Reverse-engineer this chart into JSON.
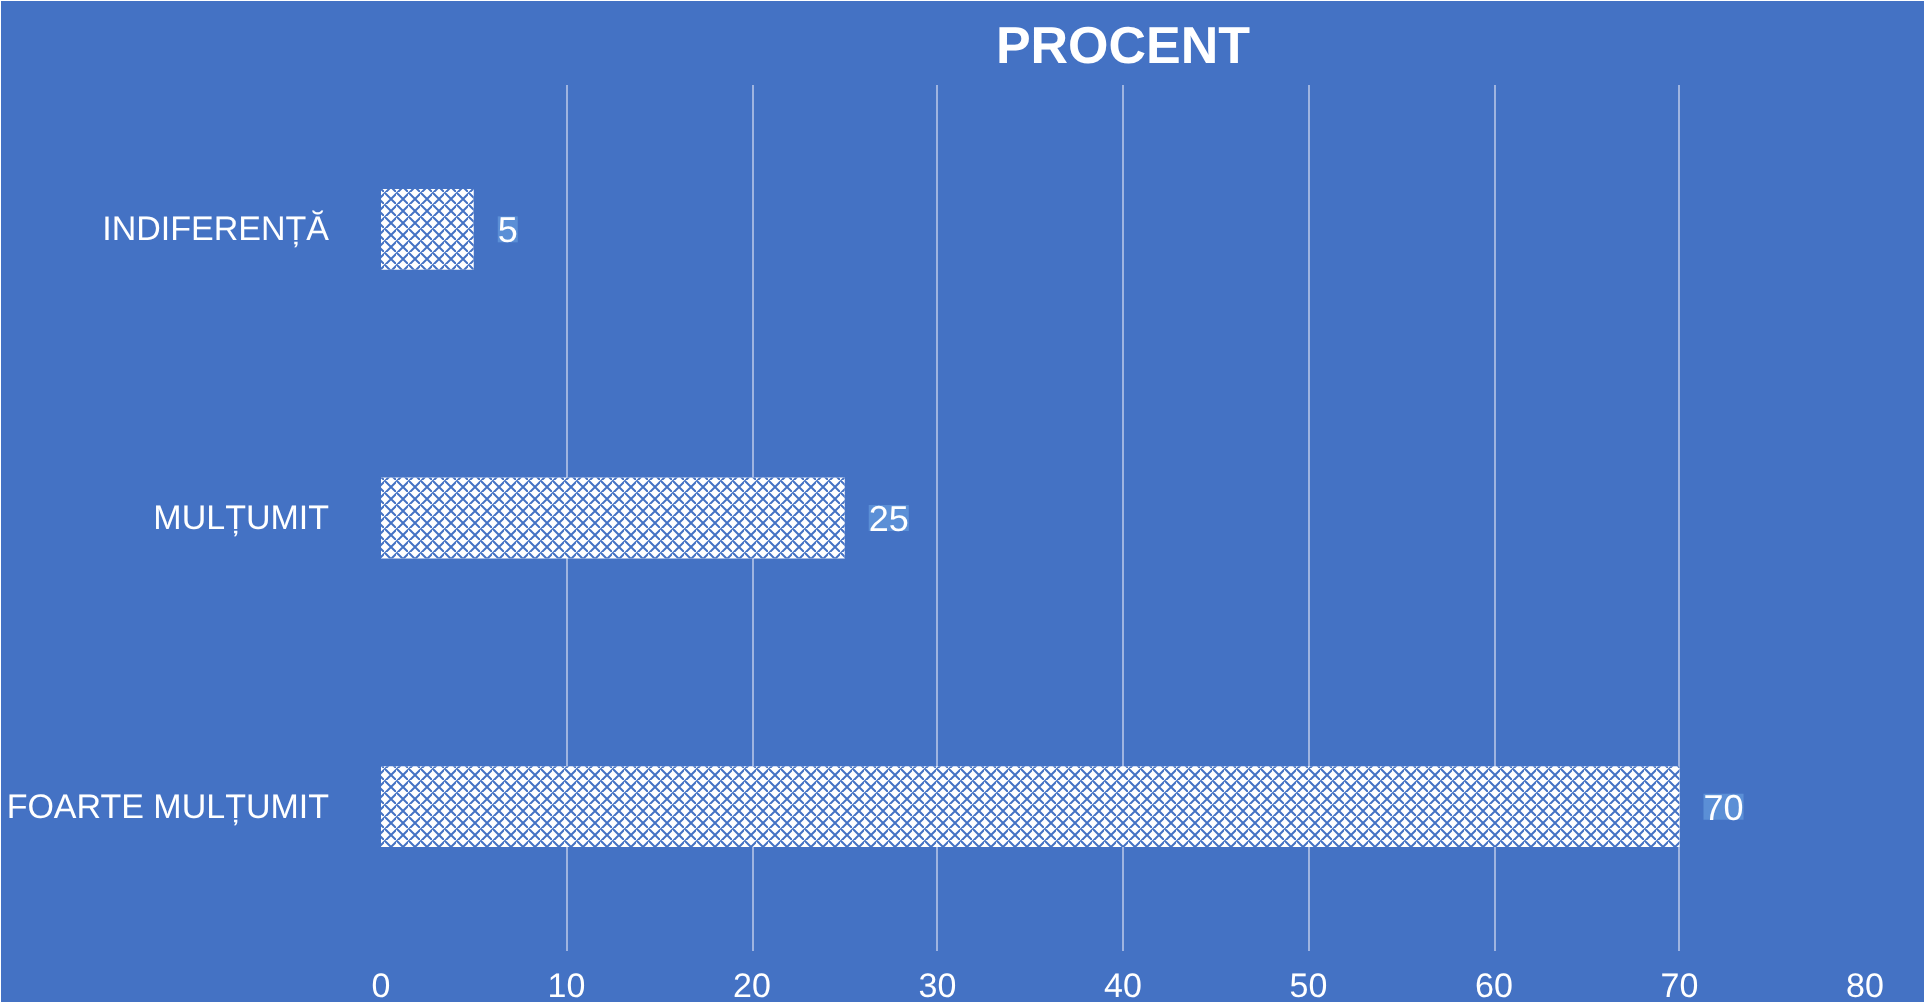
{
  "chart_data": {
    "type": "bar",
    "orientation": "horizontal",
    "title": "PROCENT",
    "categories": [
      "INDIFERENȚĂ",
      "MULȚUMIT",
      "FOARTE MULȚUMIT"
    ],
    "values": [
      5,
      25,
      70
    ],
    "color": "#ffffff",
    "xlim": [
      0,
      80
    ],
    "xticks": [
      0,
      10,
      20,
      30,
      40,
      50,
      60,
      70,
      80
    ],
    "grid": "x",
    "data_labels": true
  }
}
